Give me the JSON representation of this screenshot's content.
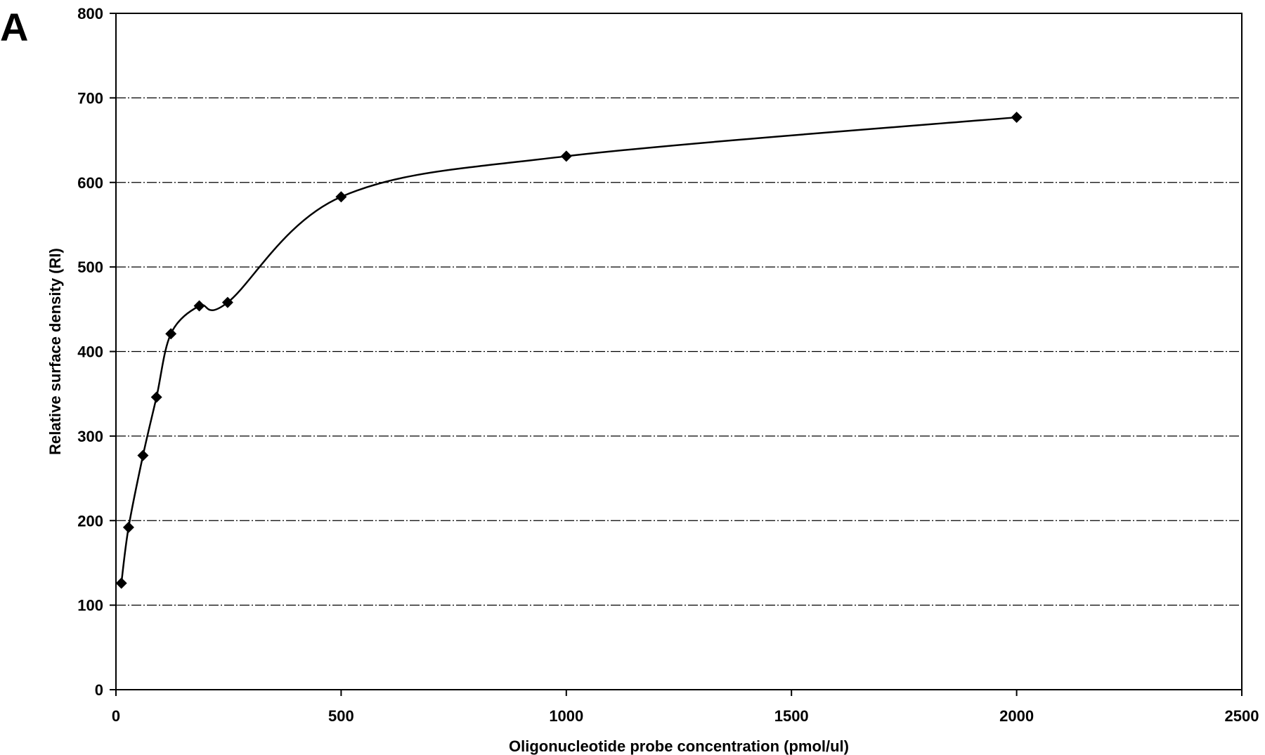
{
  "panel_label": "A",
  "chart_data": {
    "type": "line",
    "title": "",
    "xlabel": "Oligonucleotide probe concentration (pmol/ul)",
    "ylabel": "Relative surface density (RI)",
    "xlim": [
      0,
      2500
    ],
    "ylim": [
      0,
      800
    ],
    "xticks": [
      0,
      500,
      1000,
      1500,
      2000,
      2500
    ],
    "yticks": [
      0,
      100,
      200,
      300,
      400,
      500,
      600,
      700,
      800
    ],
    "grid": "horizontal dash-dot",
    "smooth": true,
    "legend": "none",
    "marker": "diamond",
    "colors": {
      "series": "#000000",
      "grid": "#000000",
      "background": "#ffffff"
    },
    "series": [
      {
        "x": [
          12,
          28,
          60,
          90,
          122,
          185,
          248,
          500,
          1000,
          2000
        ],
        "y": [
          126,
          192,
          277,
          346,
          421,
          454,
          458,
          583,
          631,
          677
        ]
      }
    ]
  }
}
